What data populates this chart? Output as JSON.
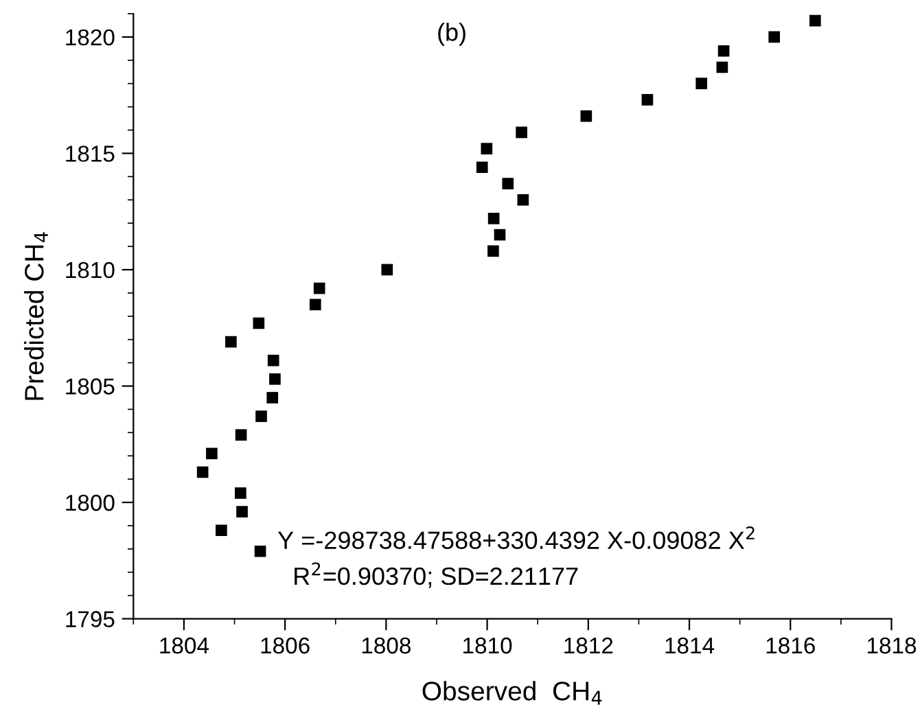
{
  "chart_data": {
    "type": "scatter",
    "xlabel": "Observed  CH$_{4}$",
    "ylabel": "Predicted CH$_{4}$",
    "annotations": [
      "(b)",
      "Y =-298738.47588+330.4392 X-0.09082 X$^{2}$",
      "R$^{2}$=0.90370; SD=2.21177"
    ],
    "x": [
      1804.37,
      1804.55,
      1804.74,
      1804.93,
      1805.12,
      1805.13,
      1805.15,
      1805.48,
      1805.53,
      1805.51,
      1805.77,
      1805.8,
      1805.75,
      1806.6,
      1806.68,
      1808.02,
      1810.12,
      1810.25,
      1810.13,
      1810.71,
      1810.41,
      1809.9,
      1809.99,
      1810.68,
      1811.96,
      1813.17,
      1814.24,
      1814.65,
      1814.68,
      1815.68,
      1816.49
    ],
    "series": [
      {
        "color": "#000000",
        "values": [
          1801.3,
          1802.1,
          1798.8,
          1806.9,
          1800.4,
          1802.9,
          1799.6,
          1807.7,
          1803.7,
          1797.9,
          1806.1,
          1805.3,
          1804.5,
          1808.5,
          1809.2,
          1810.0,
          1810.8,
          1811.5,
          1812.2,
          1813.0,
          1813.7,
          1814.4,
          1815.2,
          1815.9,
          1816.6,
          1817.3,
          1818.0,
          1818.7,
          1819.4,
          1820.0,
          1820.7
        ]
      }
    ],
    "marker": "square",
    "grid": false,
    "legend": false,
    "xlim": [
      1803,
      1818
    ],
    "xticks": [
      1804,
      1806,
      1808,
      1810,
      1812,
      1814,
      1816,
      1818
    ],
    "ylim": [
      1795,
      1821
    ],
    "yticks": [
      1795,
      1800,
      1805,
      1810,
      1815,
      1820
    ]
  }
}
